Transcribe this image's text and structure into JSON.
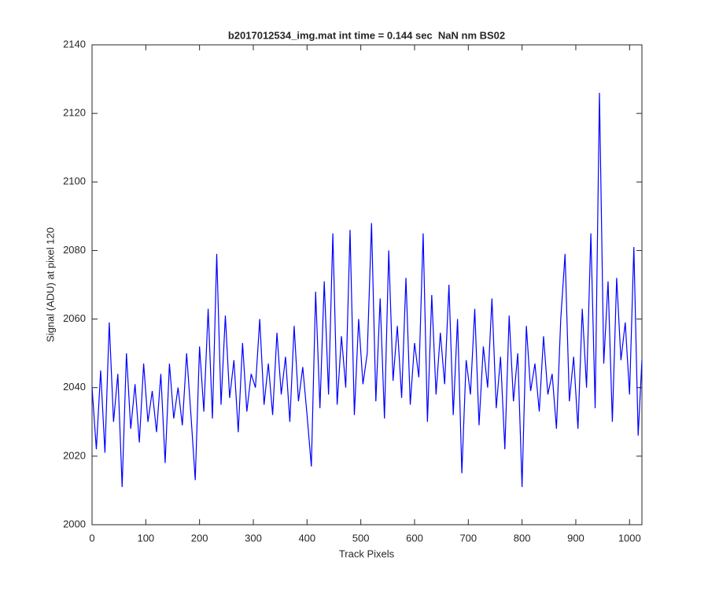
{
  "chart_data": {
    "type": "line",
    "title": "b2017012534_img.mat int time = 0.144 sec  NaN nm BS02",
    "xlabel": "Track Pixels",
    "ylabel": "Signal (ADU) at pixel 120",
    "xlim": [
      0,
      1023
    ],
    "ylim": [
      2000,
      2140
    ],
    "xticks": [
      0,
      100,
      200,
      300,
      400,
      500,
      600,
      700,
      800,
      900,
      1000
    ],
    "yticks": [
      2000,
      2020,
      2040,
      2060,
      2080,
      2100,
      2120,
      2140
    ],
    "series": [
      {
        "color": "#0000ff",
        "x": [
          0,
          8,
          16,
          24,
          32,
          40,
          48,
          56,
          64,
          72,
          80,
          88,
          96,
          104,
          112,
          120,
          128,
          136,
          144,
          152,
          160,
          168,
          176,
          184,
          192,
          200,
          208,
          216,
          224,
          232,
          240,
          248,
          256,
          264,
          272,
          280,
          288,
          296,
          304,
          312,
          320,
          328,
          336,
          344,
          352,
          360,
          368,
          376,
          384,
          392,
          400,
          408,
          416,
          424,
          432,
          440,
          448,
          456,
          464,
          472,
          480,
          488,
          496,
          504,
          512,
          520,
          528,
          536,
          544,
          552,
          560,
          568,
          576,
          584,
          592,
          600,
          608,
          616,
          624,
          632,
          640,
          648,
          656,
          664,
          672,
          680,
          688,
          696,
          704,
          712,
          720,
          728,
          736,
          744,
          752,
          760,
          768,
          776,
          784,
          792,
          800,
          808,
          816,
          824,
          832,
          840,
          848,
          856,
          864,
          872,
          880,
          888,
          896,
          904,
          912,
          920,
          928,
          936,
          944,
          952,
          960,
          968,
          976,
          984,
          992,
          1000,
          1008,
          1016,
          1023
        ],
        "values": [
          2040,
          2022,
          2045,
          2021,
          2059,
          2030,
          2044,
          2011,
          2050,
          2028,
          2041,
          2024,
          2047,
          2030,
          2039,
          2027,
          2044,
          2018,
          2047,
          2031,
          2040,
          2029,
          2050,
          2032,
          2013,
          2052,
          2033,
          2063,
          2031,
          2079,
          2035,
          2061,
          2037,
          2048,
          2027,
          2053,
          2033,
          2044,
          2040,
          2060,
          2035,
          2047,
          2032,
          2056,
          2038,
          2049,
          2030,
          2058,
          2036,
          2046,
          2032,
          2017,
          2068,
          2034,
          2071,
          2038,
          2085,
          2035,
          2055,
          2040,
          2086,
          2032,
          2060,
          2041,
          2050,
          2088,
          2036,
          2066,
          2031,
          2080,
          2042,
          2058,
          2037,
          2072,
          2035,
          2053,
          2043,
          2085,
          2030,
          2067,
          2038,
          2056,
          2041,
          2070,
          2032,
          2060,
          2015,
          2048,
          2038,
          2063,
          2029,
          2052,
          2040,
          2066,
          2034,
          2049,
          2022,
          2061,
          2036,
          2050,
          2011,
          2058,
          2039,
          2047,
          2033,
          2055,
          2038,
          2044,
          2028,
          2060,
          2079,
          2036,
          2049,
          2028,
          2063,
          2040,
          2085,
          2034,
          2126,
          2047,
          2071,
          2030,
          2072,
          2048,
          2059,
          2038,
          2081,
          2026,
          2048
        ]
      }
    ]
  }
}
